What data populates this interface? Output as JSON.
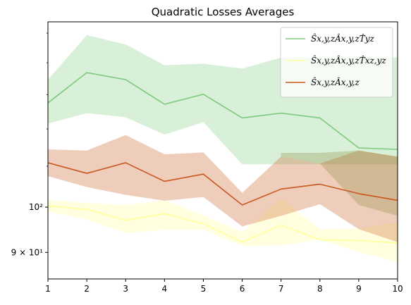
{
  "chart_data": {
    "type": "line",
    "title": "Quadratic Losses Averages",
    "xlabel": "",
    "ylabel": "",
    "x": [
      1,
      2,
      3,
      4,
      5,
      6,
      7,
      8,
      9,
      10
    ],
    "xlim": [
      1,
      10
    ],
    "ylim": [
      84.6,
      154
    ],
    "yscale": "log",
    "xticks": [
      1,
      2,
      3,
      4,
      5,
      6,
      7,
      8,
      9,
      10
    ],
    "yticks": [
      {
        "value": 100,
        "label": "10²"
      },
      {
        "value": 90,
        "label": "9 × 10¹"
      }
    ],
    "grid": false,
    "legend_position": "top-right",
    "series": [
      {
        "name": "Ŝx,y,zÂx,y,zT̂yz",
        "color": "#7fc97f",
        "band_color": "#7fc97f",
        "values": [
          127.5,
          136.8,
          134.6,
          127.1,
          130.1,
          123.1,
          124.5,
          123.1,
          114.8,
          114.4
        ],
        "band_low": [
          121.5,
          124.5,
          123.3,
          118.4,
          121.9,
          110.5,
          110.5,
          110.5,
          110.5,
          110.5
        ],
        "band_high": [
          134.6,
          149.3,
          146.1,
          139.2,
          139.7,
          138.1,
          141.7,
          141.7,
          141.7,
          141.7
        ]
      },
      {
        "name": "Ŝx,y,zÂx,y,zT̂xz,yz",
        "color": "#ffff99",
        "band_color": "#ffff99",
        "values": [
          100.3,
          99.5,
          97.0,
          98.5,
          96.2,
          92.2,
          95.9,
          92.7,
          92.5,
          92.0
        ],
        "band_low": [
          99.0,
          97.2,
          94.1,
          94.9,
          94.9,
          91.3,
          91.5,
          92.7,
          90.0,
          88.1
        ],
        "band_high": [
          101.7,
          101.0,
          100.5,
          101.6,
          98.1,
          94.3,
          101.9,
          95.0,
          95.2,
          96.5
        ]
      },
      {
        "name": "Ŝx,y,zÂx,y,z",
        "color": "#c9581e",
        "band_color": "#c9581e",
        "values": [
          110.9,
          108.2,
          110.9,
          106.2,
          108.0,
          100.5,
          104.3,
          105.5,
          103.2,
          101.6
        ],
        "band_low": [
          107.5,
          104.8,
          102.9,
          101.5,
          102.4,
          95.6,
          98.0,
          100.7,
          95.0,
          92.2
        ],
        "band_high": [
          114.4,
          114.1,
          118.3,
          113.1,
          113.6,
          103.4,
          112.5,
          110.7,
          114.1,
          112.5
        ]
      }
    ],
    "overlay_band": {
      "color": "#8c8c40",
      "band_low": [
        null,
        null,
        null,
        null,
        null,
        null,
        112.5,
        110.7,
        100.5,
        98.0
      ],
      "band_high": [
        null,
        null,
        null,
        null,
        null,
        null,
        113.5,
        113.5,
        114.1,
        112.5
      ]
    }
  }
}
